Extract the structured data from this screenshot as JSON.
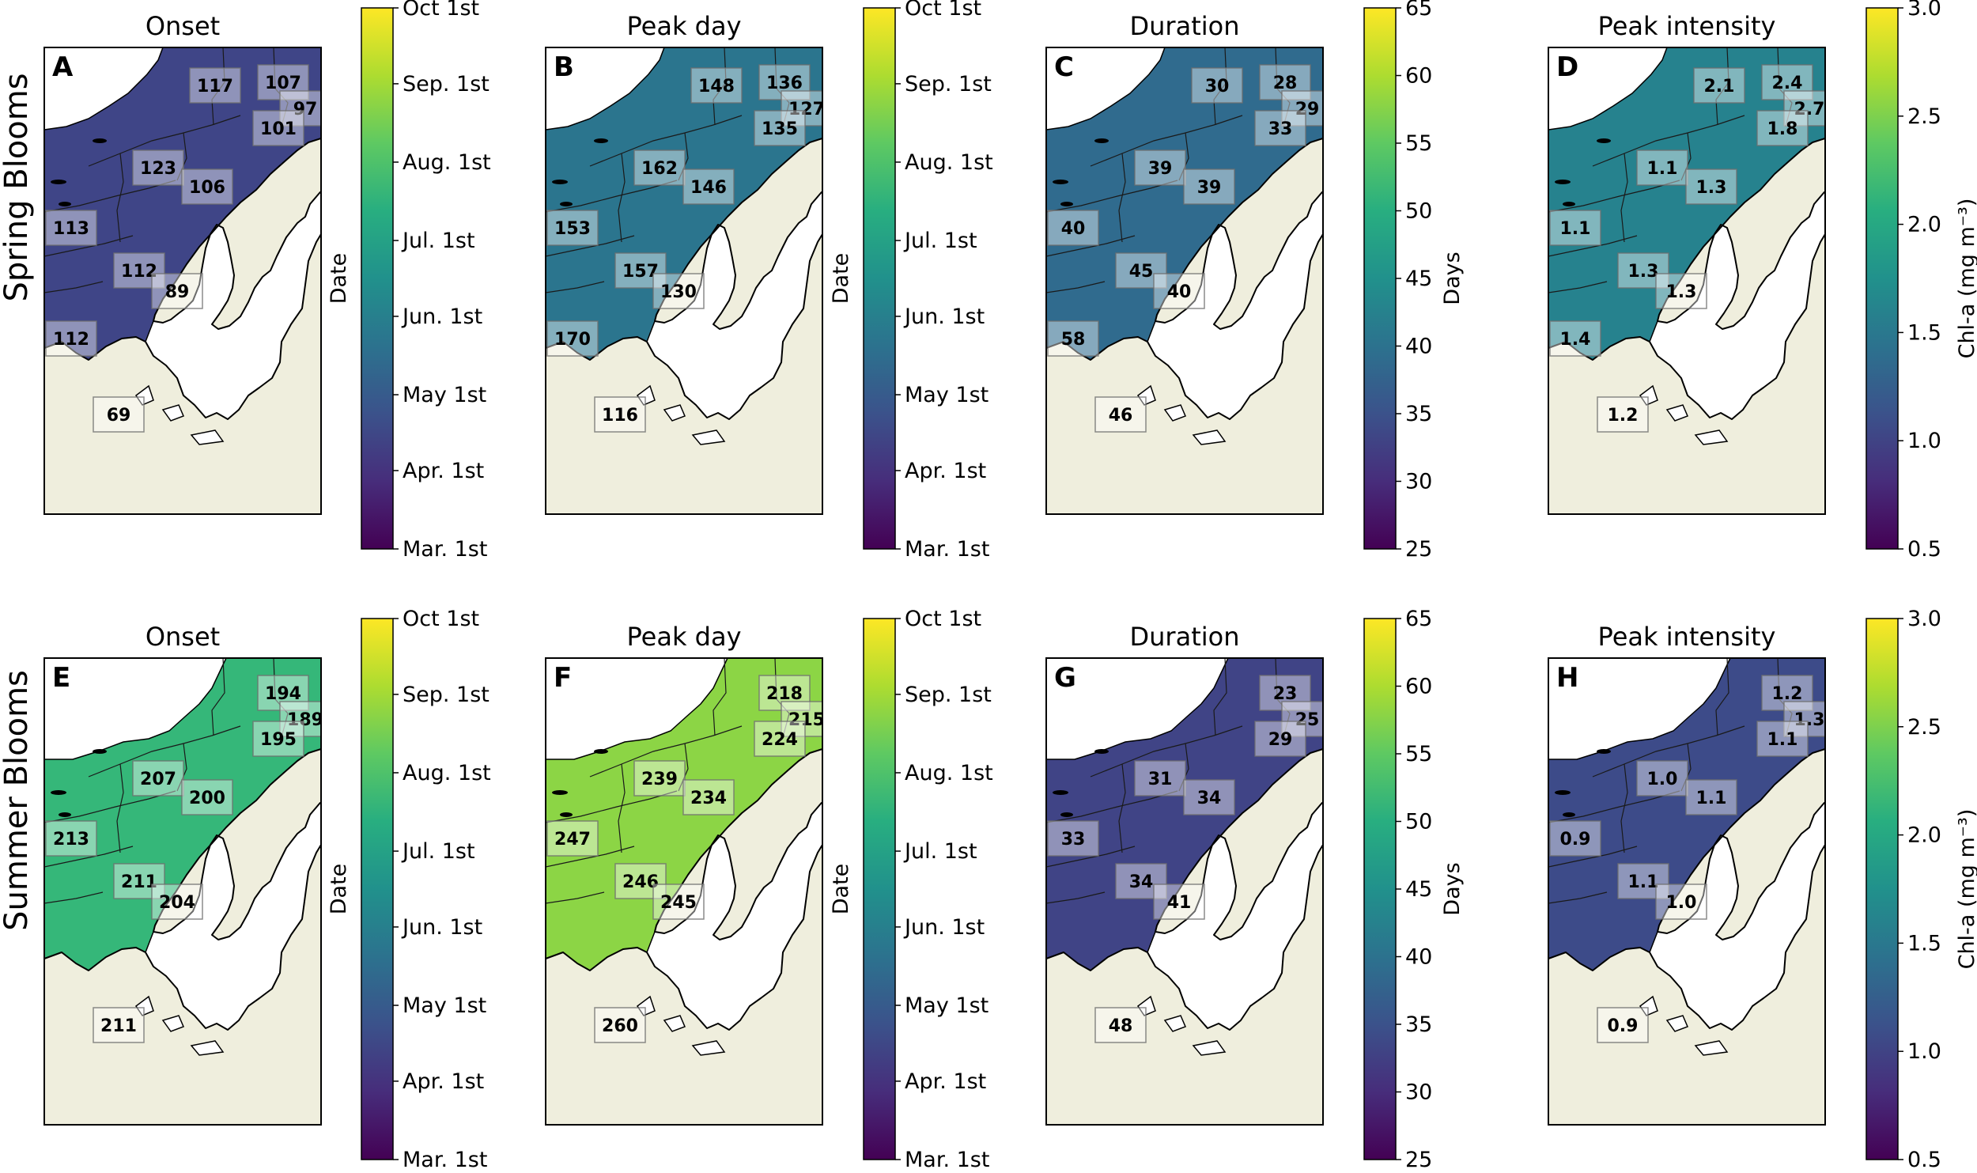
{
  "rows": [
    {
      "label": "Spring Blooms"
    },
    {
      "label": "Summer Blooms"
    }
  ],
  "colorbars": {
    "date": {
      "label": "Date",
      "ticks": [
        "Oct 1st",
        "Sep. 1st",
        "Aug. 1st",
        "Jul. 1st",
        "Jun. 1st",
        "May 1st",
        "Apr. 1st",
        "Mar. 1st"
      ],
      "range_doy": [
        60,
        274
      ],
      "tick_doy": [
        274,
        244,
        213,
        182,
        152,
        121,
        91,
        60
      ]
    },
    "days": {
      "label": "Days",
      "ticks": [
        "65",
        "60",
        "55",
        "50",
        "45",
        "40",
        "35",
        "30",
        "25"
      ],
      "range": [
        25,
        65
      ]
    },
    "chl": {
      "label": "Chl-a (mg m⁻³)",
      "ticks": [
        "3.0",
        "2.5",
        "2.0",
        "1.5",
        "1.0",
        "0.5"
      ],
      "range": [
        0.5,
        3.0
      ]
    }
  },
  "panels": [
    {
      "letter": "A",
      "title": "Onset",
      "metric": "date",
      "regions": [
        {
          "region": "r1",
          "label": "117",
          "value": 117
        },
        {
          "region": "r2",
          "label": "107",
          "value": 107
        },
        {
          "region": "r3",
          "label": "97",
          "value": 97
        },
        {
          "region": "r4",
          "label": "101",
          "value": 101
        },
        {
          "region": "r5",
          "label": "123",
          "value": 123
        },
        {
          "region": "r6",
          "label": "106",
          "value": 106
        },
        {
          "region": "r7",
          "label": "113",
          "value": 113
        },
        {
          "region": "r8",
          "label": "112",
          "value": 112
        },
        {
          "region": "r9",
          "label": "89",
          "value": 89
        },
        {
          "region": "r10",
          "label": "112",
          "value": 112
        },
        {
          "region": "r11",
          "label": "69",
          "value": 69
        }
      ]
    },
    {
      "letter": "B",
      "title": "Peak day",
      "metric": "date",
      "regions": [
        {
          "region": "r1",
          "label": "148",
          "value": 148
        },
        {
          "region": "r2",
          "label": "136",
          "value": 136
        },
        {
          "region": "r3",
          "label": "127",
          "value": 127
        },
        {
          "region": "r4",
          "label": "135",
          "value": 135
        },
        {
          "region": "r5",
          "label": "162",
          "value": 162
        },
        {
          "region": "r6",
          "label": "146",
          "value": 146
        },
        {
          "region": "r7",
          "label": "153",
          "value": 153
        },
        {
          "region": "r8",
          "label": "157",
          "value": 157
        },
        {
          "region": "r9",
          "label": "130",
          "value": 130
        },
        {
          "region": "r10",
          "label": "170",
          "value": 170
        },
        {
          "region": "r11",
          "label": "116",
          "value": 116
        }
      ]
    },
    {
      "letter": "C",
      "title": "Duration",
      "metric": "days",
      "regions": [
        {
          "region": "r1",
          "label": "30",
          "value": 30
        },
        {
          "region": "r2",
          "label": "28",
          "value": 28
        },
        {
          "region": "r3",
          "label": "29",
          "value": 29
        },
        {
          "region": "r4",
          "label": "33",
          "value": 33
        },
        {
          "region": "r5",
          "label": "39",
          "value": 39
        },
        {
          "region": "r6",
          "label": "39",
          "value": 39
        },
        {
          "region": "r7",
          "label": "40",
          "value": 40
        },
        {
          "region": "r8",
          "label": "45",
          "value": 45
        },
        {
          "region": "r9",
          "label": "40",
          "value": 40
        },
        {
          "region": "r10",
          "label": "58",
          "value": 58
        },
        {
          "region": "r11",
          "label": "46",
          "value": 46
        }
      ]
    },
    {
      "letter": "D",
      "title": "Peak intensity",
      "metric": "chl",
      "regions": [
        {
          "region": "r1",
          "label": "2.1",
          "value": 2.1
        },
        {
          "region": "r2",
          "label": "2.4",
          "value": 2.4
        },
        {
          "region": "r3",
          "label": "2.7",
          "value": 2.7
        },
        {
          "region": "r4",
          "label": "1.8",
          "value": 1.8
        },
        {
          "region": "r5",
          "label": "1.1",
          "value": 1.1
        },
        {
          "region": "r6",
          "label": "1.3",
          "value": 1.3
        },
        {
          "region": "r7",
          "label": "1.1",
          "value": 1.1
        },
        {
          "region": "r8",
          "label": "1.3",
          "value": 1.3
        },
        {
          "region": "r9",
          "label": "1.3",
          "value": 1.3
        },
        {
          "region": "r10",
          "label": "1.4",
          "value": 1.4
        },
        {
          "region": "r11",
          "label": "1.2",
          "value": 1.2
        }
      ]
    },
    {
      "letter": "E",
      "title": "Onset",
      "metric": "date",
      "regions": [
        {
          "region": "r2",
          "label": "194",
          "value": 194
        },
        {
          "region": "r3",
          "label": "189",
          "value": 189
        },
        {
          "region": "r4",
          "label": "195",
          "value": 195
        },
        {
          "region": "r5",
          "label": "207",
          "value": 207
        },
        {
          "region": "r6",
          "label": "200",
          "value": 200
        },
        {
          "region": "r7",
          "label": "213",
          "value": 213
        },
        {
          "region": "r8",
          "label": "211",
          "value": 211
        },
        {
          "region": "r9",
          "label": "204",
          "value": 204
        },
        {
          "region": "r11",
          "label": "211",
          "value": 211
        }
      ]
    },
    {
      "letter": "F",
      "title": "Peak day",
      "metric": "date",
      "regions": [
        {
          "region": "r2",
          "label": "218",
          "value": 218
        },
        {
          "region": "r3",
          "label": "215",
          "value": 215
        },
        {
          "region": "r4",
          "label": "224",
          "value": 224
        },
        {
          "region": "r5",
          "label": "239",
          "value": 239
        },
        {
          "region": "r6",
          "label": "234",
          "value": 234
        },
        {
          "region": "r7",
          "label": "247",
          "value": 247
        },
        {
          "region": "r8",
          "label": "246",
          "value": 246
        },
        {
          "region": "r9",
          "label": "245",
          "value": 245
        },
        {
          "region": "r11",
          "label": "260",
          "value": 260
        }
      ]
    },
    {
      "letter": "G",
      "title": "Duration",
      "metric": "days",
      "regions": [
        {
          "region": "r2",
          "label": "23",
          "value": 23
        },
        {
          "region": "r3",
          "label": "25",
          "value": 25
        },
        {
          "region": "r4",
          "label": "29",
          "value": 29
        },
        {
          "region": "r5",
          "label": "31",
          "value": 31
        },
        {
          "region": "r6",
          "label": "34",
          "value": 34
        },
        {
          "region": "r7",
          "label": "33",
          "value": 33
        },
        {
          "region": "r8",
          "label": "34",
          "value": 34
        },
        {
          "region": "r9",
          "label": "41",
          "value": 41
        },
        {
          "region": "r11",
          "label": "48",
          "value": 48
        }
      ]
    },
    {
      "letter": "H",
      "title": "Peak intensity",
      "metric": "chl",
      "regions": [
        {
          "region": "r2",
          "label": "1.2",
          "value": 1.2
        },
        {
          "region": "r3",
          "label": "1.3",
          "value": 1.3
        },
        {
          "region": "r4",
          "label": "1.1",
          "value": 1.1
        },
        {
          "region": "r5",
          "label": "1.0",
          "value": 1.0
        },
        {
          "region": "r6",
          "label": "1.1",
          "value": 1.1
        },
        {
          "region": "r7",
          "label": "0.9",
          "value": 0.9
        },
        {
          "region": "r8",
          "label": "1.1",
          "value": 1.1
        },
        {
          "region": "r9",
          "label": "1.0",
          "value": 1.0
        },
        {
          "region": "r11",
          "label": "0.9",
          "value": 0.9
        }
      ]
    }
  ]
}
